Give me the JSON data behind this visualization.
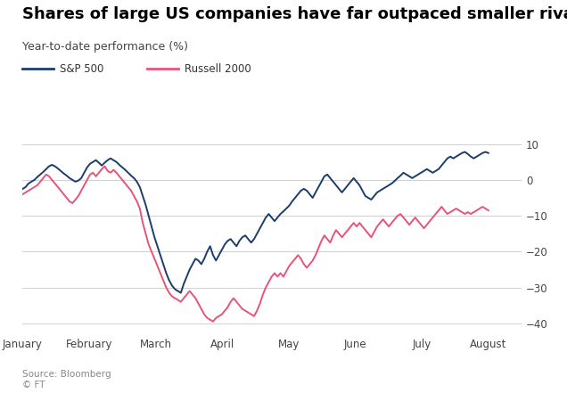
{
  "title": "Shares of large US companies have far outpaced smaller rivals",
  "subtitle": "Year-to-date performance (%)",
  "source": "Source: Bloomberg\n© FT",
  "title_fontsize": 13,
  "subtitle_fontsize": 9,
  "sp500_color": "#1b3d6e",
  "russell_color": "#e8537a",
  "sp500_label": "S&P 500",
  "russell_label": "Russell 2000",
  "yticks": [
    10,
    0,
    -10,
    -20,
    -30,
    -40
  ],
  "ylim": [
    -43,
    14
  ],
  "background_color": "#ffffff",
  "grid_color": "#d0d0d0",
  "months": [
    "January",
    "February",
    "March",
    "April",
    "May",
    "June",
    "July",
    "August"
  ],
  "sp500": [
    -2.5,
    -2.0,
    -1.0,
    -0.5,
    0.0,
    0.8,
    1.5,
    2.2,
    3.0,
    3.8,
    4.2,
    3.8,
    3.2,
    2.5,
    1.8,
    1.2,
    0.5,
    0.0,
    -0.5,
    -0.2,
    0.5,
    2.0,
    3.5,
    4.5,
    5.0,
    5.5,
    4.8,
    4.0,
    4.8,
    5.5,
    6.0,
    5.5,
    5.0,
    4.2,
    3.5,
    2.8,
    2.0,
    1.2,
    0.5,
    -0.5,
    -2.0,
    -4.5,
    -7.0,
    -10.0,
    -13.0,
    -16.0,
    -18.5,
    -21.0,
    -23.5,
    -26.0,
    -28.0,
    -29.5,
    -30.5,
    -31.0,
    -31.5,
    -29.0,
    -27.0,
    -25.0,
    -23.5,
    -22.0,
    -22.5,
    -23.5,
    -22.0,
    -20.0,
    -18.5,
    -21.0,
    -22.5,
    -21.0,
    -19.5,
    -18.0,
    -17.0,
    -16.5,
    -17.5,
    -18.5,
    -17.0,
    -16.0,
    -15.5,
    -16.5,
    -17.5,
    -16.5,
    -15.0,
    -13.5,
    -12.0,
    -10.5,
    -9.5,
    -10.5,
    -11.5,
    -10.5,
    -9.5,
    -8.8,
    -8.0,
    -7.2,
    -6.0,
    -5.0,
    -4.0,
    -3.0,
    -2.5,
    -3.0,
    -4.0,
    -5.0,
    -3.5,
    -2.0,
    -0.5,
    1.0,
    1.5,
    0.5,
    -0.5,
    -1.5,
    -2.5,
    -3.5,
    -2.5,
    -1.5,
    -0.5,
    0.5,
    -0.5,
    -1.5,
    -3.0,
    -4.5,
    -5.0,
    -5.5,
    -4.5,
    -3.5,
    -3.0,
    -2.5,
    -2.0,
    -1.5,
    -1.0,
    -0.3,
    0.5,
    1.2,
    2.0,
    1.5,
    1.0,
    0.5,
    1.0,
    1.5,
    2.0,
    2.5,
    3.0,
    2.5,
    2.0,
    2.5,
    3.0,
    4.0,
    5.0,
    6.0,
    6.5,
    6.0,
    6.5,
    7.0,
    7.5,
    7.8,
    7.2,
    6.5,
    6.0,
    6.5,
    7.0,
    7.5,
    7.8,
    7.5
  ],
  "russell": [
    -4.0,
    -3.5,
    -3.0,
    -2.5,
    -2.0,
    -1.5,
    -0.5,
    0.5,
    1.5,
    1.0,
    0.0,
    -1.0,
    -2.0,
    -3.0,
    -4.0,
    -5.0,
    -6.0,
    -6.5,
    -5.5,
    -4.5,
    -3.0,
    -1.5,
    0.0,
    1.5,
    2.0,
    1.0,
    2.0,
    3.0,
    3.8,
    2.5,
    2.0,
    2.8,
    2.0,
    1.0,
    0.0,
    -1.0,
    -2.0,
    -3.0,
    -4.5,
    -6.0,
    -8.0,
    -12.0,
    -15.0,
    -18.0,
    -20.0,
    -22.0,
    -24.0,
    -26.0,
    -28.0,
    -30.0,
    -31.5,
    -32.5,
    -33.0,
    -33.5,
    -34.0,
    -33.0,
    -32.0,
    -31.0,
    -32.0,
    -33.0,
    -34.5,
    -36.0,
    -37.5,
    -38.5,
    -39.0,
    -39.5,
    -38.5,
    -38.0,
    -37.5,
    -36.5,
    -35.5,
    -34.0,
    -33.0,
    -34.0,
    -35.0,
    -36.0,
    -36.5,
    -37.0,
    -37.5,
    -38.0,
    -36.5,
    -34.5,
    -32.0,
    -30.0,
    -28.5,
    -27.0,
    -26.0,
    -27.0,
    -26.0,
    -27.0,
    -25.5,
    -24.0,
    -23.0,
    -22.0,
    -21.0,
    -22.0,
    -23.5,
    -24.5,
    -23.5,
    -22.5,
    -21.0,
    -19.0,
    -17.0,
    -15.5,
    -16.5,
    -17.5,
    -15.5,
    -14.0,
    -15.0,
    -16.0,
    -15.0,
    -14.0,
    -13.0,
    -12.0,
    -13.0,
    -12.0,
    -13.0,
    -14.0,
    -15.0,
    -16.0,
    -14.5,
    -13.0,
    -12.0,
    -11.0,
    -12.0,
    -13.0,
    -12.0,
    -11.0,
    -10.0,
    -9.5,
    -10.5,
    -11.5,
    -12.5,
    -11.5,
    -10.5,
    -11.5,
    -12.5,
    -13.5,
    -12.5,
    -11.5,
    -10.5,
    -9.5,
    -8.5,
    -7.5,
    -8.5,
    -9.5,
    -9.0,
    -8.5,
    -8.0,
    -8.5,
    -9.0,
    -9.5,
    -9.0,
    -9.5,
    -9.0,
    -8.5,
    -8.0,
    -7.5,
    -8.0,
    -8.5
  ]
}
